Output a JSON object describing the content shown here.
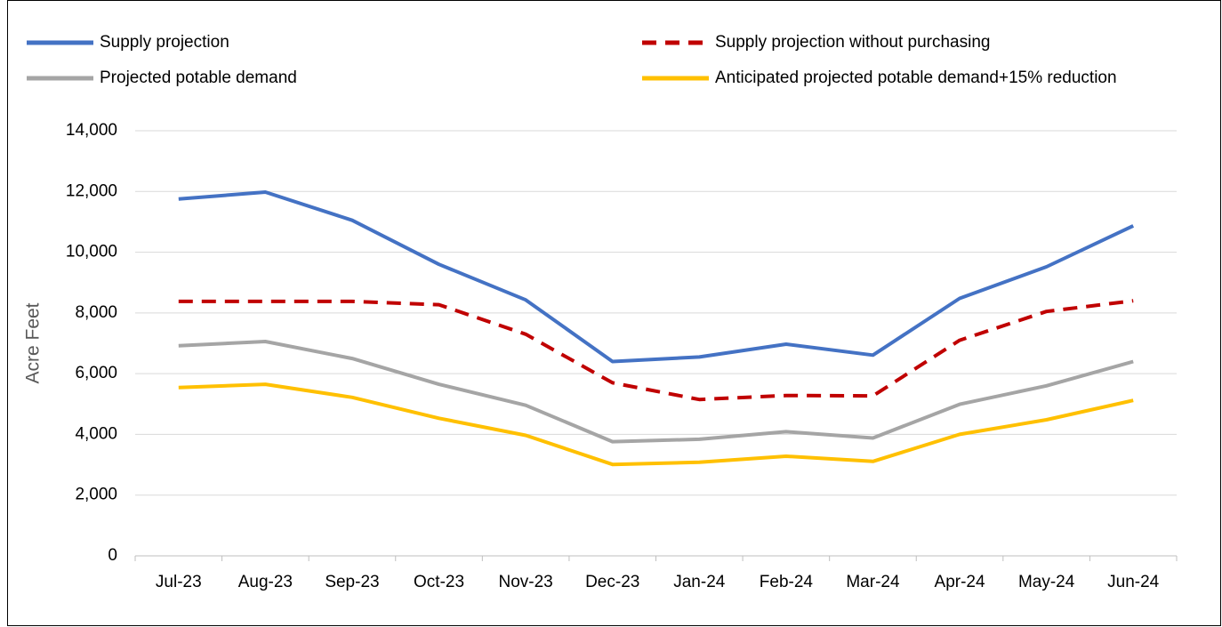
{
  "chart_data": {
    "type": "line",
    "y_label": "Acre Feet",
    "categories": [
      "Jul-23",
      "Aug-23",
      "Sep-23",
      "Oct-23",
      "Nov-23",
      "Dec-23",
      "Jan-24",
      "Feb-24",
      "Mar-24",
      "Apr-24",
      "May-24",
      "Jun-24"
    ],
    "series": [
      {
        "name": "Supply projection",
        "color": "#4472c4",
        "line_style": "solid",
        "values": [
          11750,
          11980,
          11050,
          9600,
          8430,
          6400,
          6550,
          6970,
          6610,
          8480,
          9520,
          10870
        ]
      },
      {
        "name": "Supply projection without purchasing",
        "color": "#c00000",
        "line_style": "dashed",
        "values": [
          8380,
          8380,
          8380,
          8270,
          7300,
          5700,
          5150,
          5280,
          5270,
          7100,
          8050,
          8400
        ]
      },
      {
        "name": "Projected potable demand",
        "color": "#a5a5a5",
        "line_style": "solid",
        "values": [
          6920,
          7060,
          6500,
          5650,
          4960,
          3760,
          3840,
          4090,
          3880,
          4990,
          5600,
          6400
        ]
      },
      {
        "name": "Anticipated projected potable demand+15% reduction",
        "color": "#ffc000",
        "line_style": "solid",
        "values": [
          5540,
          5650,
          5220,
          4530,
          3970,
          3010,
          3080,
          3280,
          3110,
          4000,
          4480,
          5120
        ]
      }
    ],
    "ylim": [
      0,
      14000
    ],
    "yticks": [
      0,
      {
        "value": 2000,
        "label": "2,000"
      },
      {
        "value": 4000,
        "label": "4,000"
      },
      {
        "value": 6000,
        "label": "6,000"
      },
      {
        "value": 8000,
        "label": "8,000"
      },
      {
        "value": 10000,
        "label": "10,000"
      },
      {
        "value": 12000,
        "label": "12,000"
      },
      {
        "value": 14000,
        "label": "14,000"
      }
    ],
    "grid": true
  }
}
